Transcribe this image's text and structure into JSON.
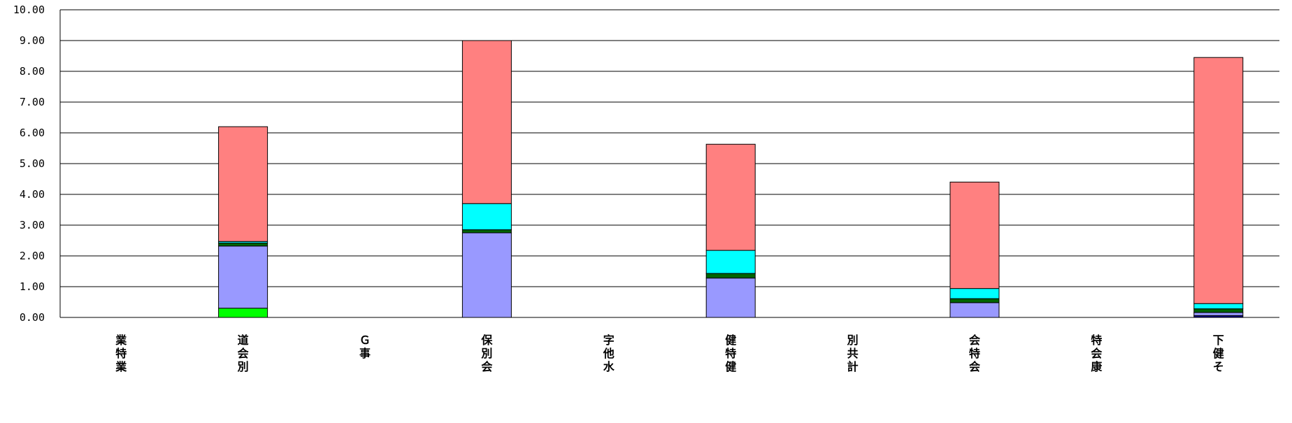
{
  "chart_data": {
    "type": "bar",
    "stacked": true,
    "title": "",
    "xlabel": "",
    "ylabel": "",
    "ylim": [
      0,
      10
    ],
    "yticks": [
      "0.00",
      "1.00",
      "2.00",
      "3.00",
      "4.00",
      "5.00",
      "6.00",
      "7.00",
      "8.00",
      "9.00",
      "10.00"
    ],
    "grid": true,
    "legend": "none",
    "categories": [
      [
        "業",
        "特",
        "業"
      ],
      [
        "道",
        "会",
        "別"
      ],
      [
        "Ｇ",
        "事"
      ],
      [
        "保",
        "別",
        "会"
      ],
      [
        "字",
        "他",
        "水"
      ],
      [
        "健",
        "特",
        "健"
      ],
      [
        "別",
        "共",
        "計"
      ],
      [
        "会",
        "特",
        "会"
      ],
      [
        "特",
        "会",
        "康"
      ],
      [
        "下",
        "健",
        "そ"
      ]
    ],
    "series": [
      {
        "color": "#000080",
        "values": [
          0,
          0,
          0,
          0,
          0,
          0,
          0,
          0,
          0,
          0.06
        ]
      },
      {
        "color": "#00ff00",
        "values": [
          0,
          0.3,
          0,
          0,
          0,
          0,
          0,
          0,
          0,
          0
        ]
      },
      {
        "color": "#9999ff",
        "values": [
          0,
          2.02,
          0,
          2.75,
          0,
          1.28,
          0,
          0.48,
          0,
          0.1
        ]
      },
      {
        "color": "#006400",
        "values": [
          0,
          0.1,
          0,
          0.1,
          0,
          0.15,
          0,
          0.13,
          0,
          0.12
        ]
      },
      {
        "color": "#00ffff",
        "values": [
          0,
          0.05,
          0,
          0.85,
          0,
          0.75,
          0,
          0.33,
          0,
          0.17
        ]
      },
      {
        "color": "#ff8080",
        "values": [
          0,
          3.73,
          0,
          5.3,
          0,
          3.45,
          0,
          3.46,
          0,
          8.0
        ]
      }
    ]
  }
}
